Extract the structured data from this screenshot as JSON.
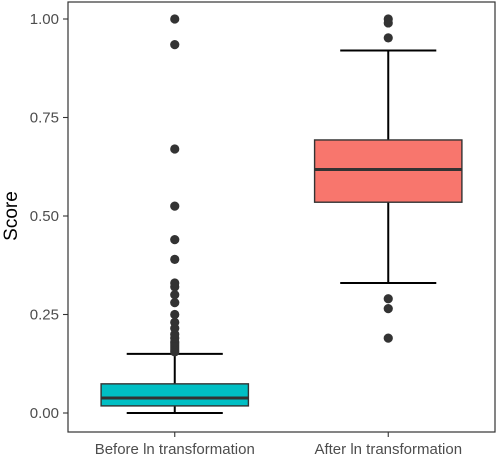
{
  "chart_data": {
    "type": "box",
    "title": "",
    "xlabel": "",
    "ylabel": "Score",
    "ylim": [
      -0.05,
      1.05
    ],
    "yticks": [
      {
        "value": 0.0,
        "label": "0.00"
      },
      {
        "value": 0.25,
        "label": "0.25"
      },
      {
        "value": 0.5,
        "label": "0.50"
      },
      {
        "value": 0.75,
        "label": "0.75"
      },
      {
        "value": 1.0,
        "label": "1.00"
      }
    ],
    "categories": [
      "Before ln transformation",
      "After ln transformation"
    ],
    "boxes": [
      {
        "category": "Before ln transformation",
        "color": "#00BFC4",
        "whisker_low": 0.0,
        "q1": 0.018,
        "median": 0.038,
        "q3": 0.074,
        "whisker_high": 0.15,
        "outliers": [
          0.155,
          0.16,
          0.165,
          0.17,
          0.175,
          0.18,
          0.19,
          0.2,
          0.215,
          0.23,
          0.25,
          0.28,
          0.3,
          0.32,
          0.33,
          0.39,
          0.44,
          0.525,
          0.67,
          0.935,
          1.0
        ]
      },
      {
        "category": "After ln transformation",
        "color": "#F8766D",
        "whisker_low": 0.33,
        "q1": 0.535,
        "median": 0.618,
        "q3": 0.693,
        "whisker_high": 0.92,
        "outliers": [
          0.19,
          0.265,
          0.29,
          0.952,
          0.99,
          1.0
        ]
      }
    ]
  }
}
